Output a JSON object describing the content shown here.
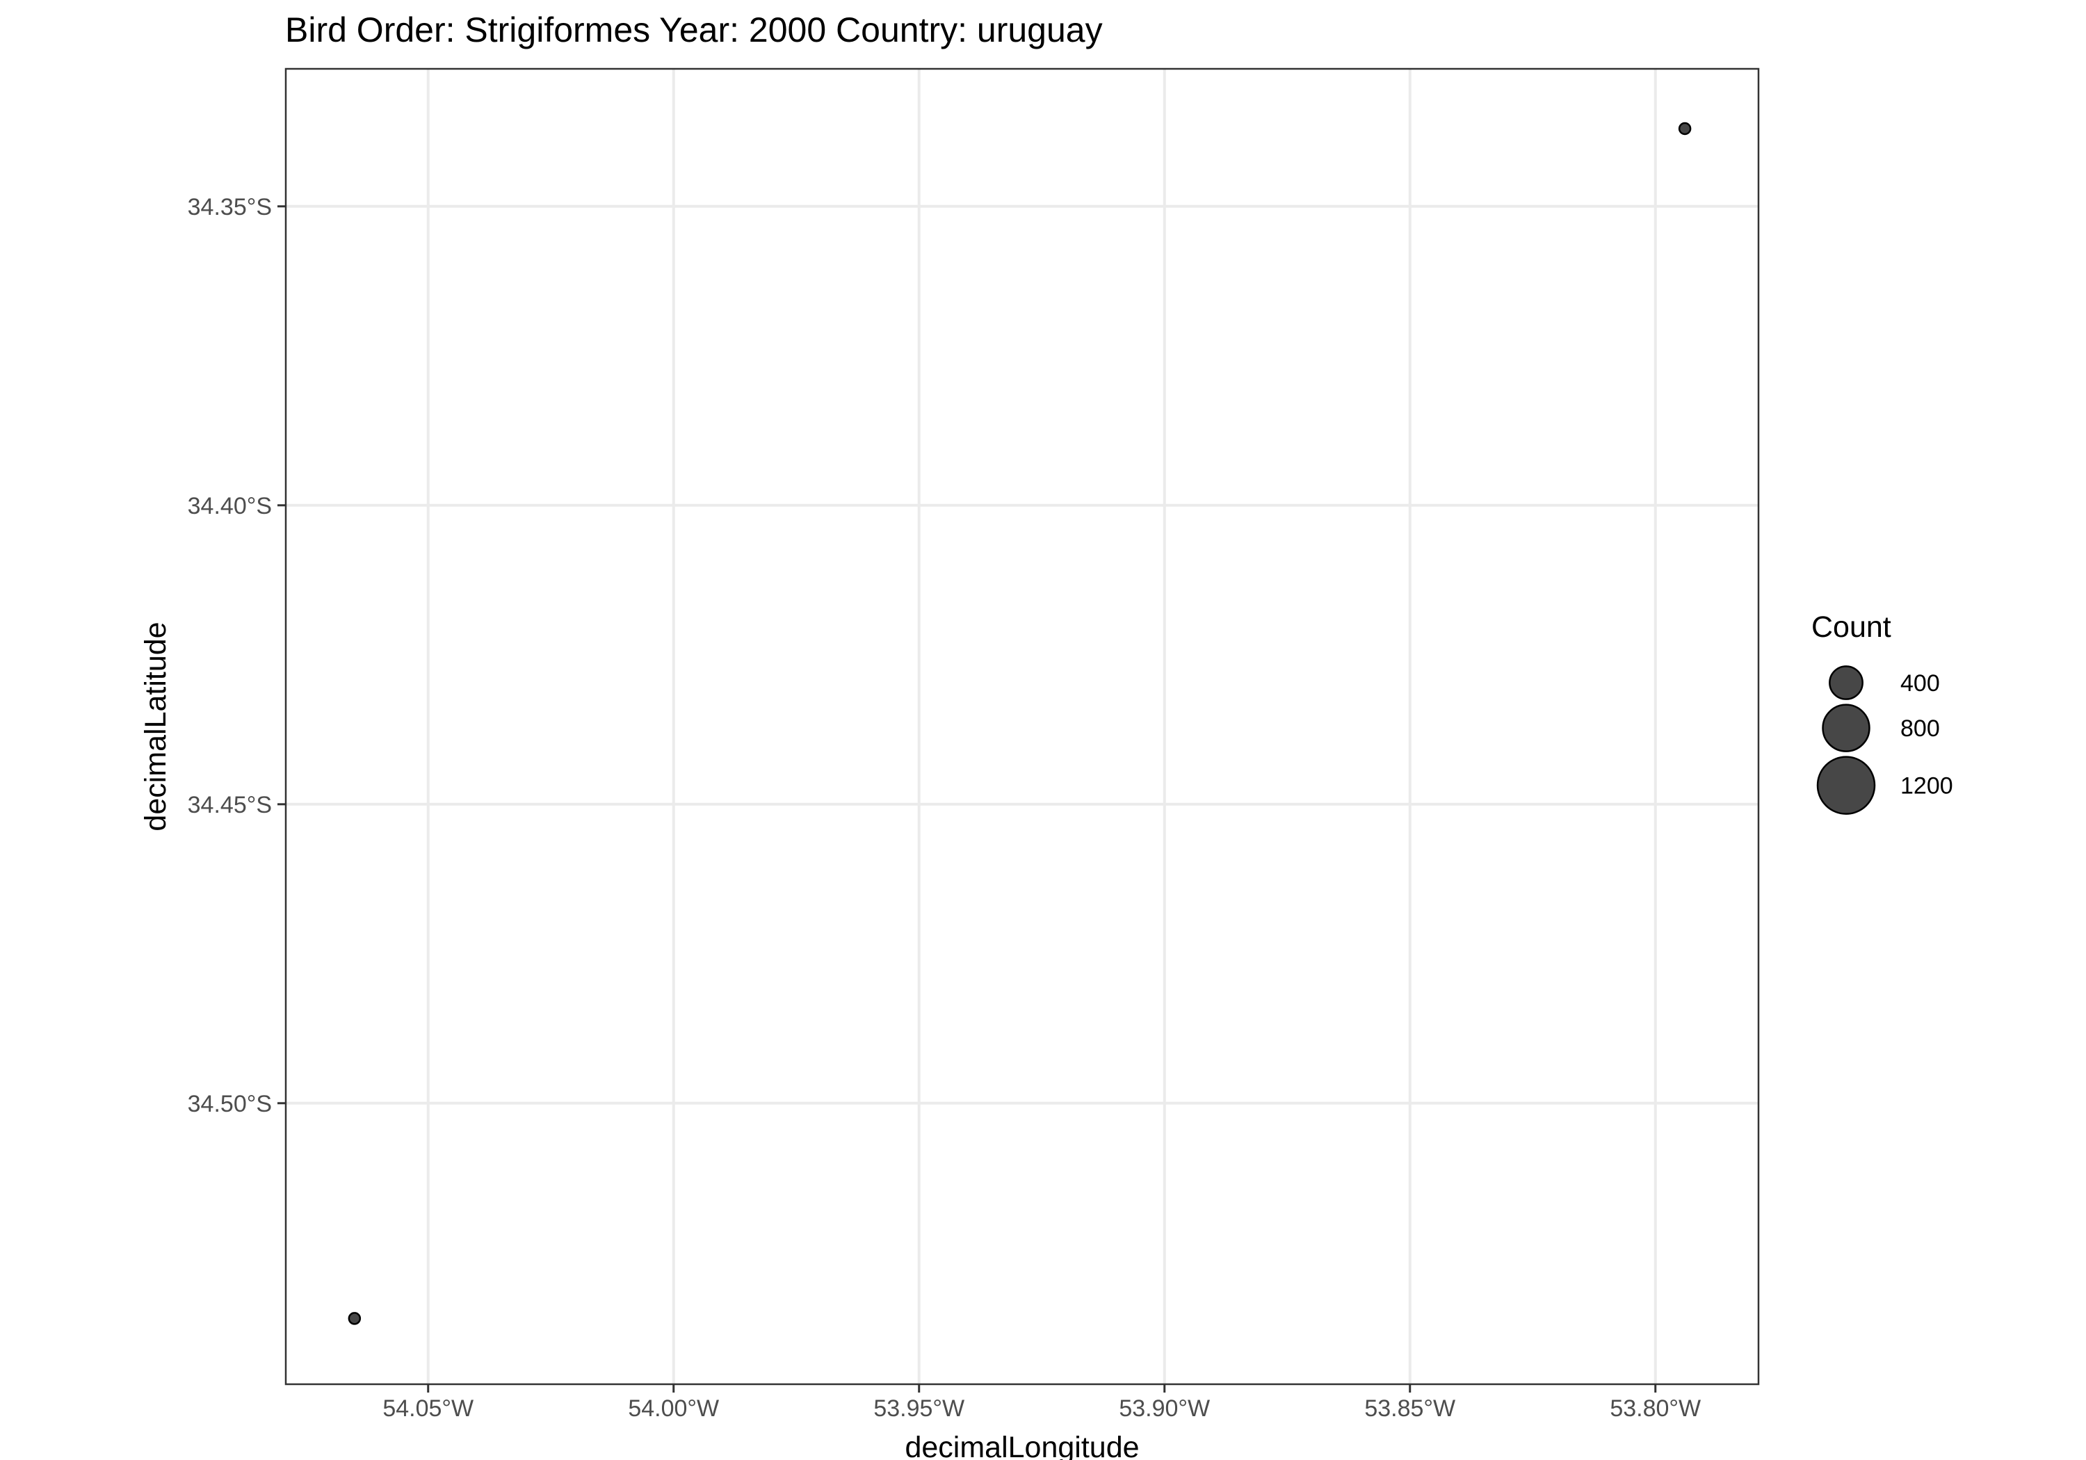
{
  "chart_data": {
    "type": "scatter",
    "title": "Bird Order: Strigiformes Year: 2000 Country: uruguay",
    "xlabel": "decimalLongitude",
    "ylabel": "decimalLatitude",
    "xlim": [
      -54.079,
      -53.779
    ],
    "ylim": [
      -34.547,
      -34.327
    ],
    "x_ticks": [
      {
        "value": -54.05,
        "label": "54.05°W"
      },
      {
        "value": -54.0,
        "label": "54.00°W"
      },
      {
        "value": -53.95,
        "label": "53.95°W"
      },
      {
        "value": -53.9,
        "label": "53.90°W"
      },
      {
        "value": -53.85,
        "label": "53.85°W"
      },
      {
        "value": -53.8,
        "label": "53.80°W"
      }
    ],
    "y_ticks": [
      {
        "value": -34.35,
        "label": "34.35°S"
      },
      {
        "value": -34.4,
        "label": "34.40°S"
      },
      {
        "value": -34.45,
        "label": "34.45°S"
      },
      {
        "value": -34.5,
        "label": "34.50°S"
      }
    ],
    "points": [
      {
        "x": -54.065,
        "y": -34.536,
        "count": 20
      },
      {
        "x": -53.794,
        "y": -34.337,
        "count": 30
      }
    ],
    "grid": true,
    "legend": {
      "title": "Count",
      "position": "right",
      "entries": [
        {
          "value": 400,
          "label": "400"
        },
        {
          "value": 800,
          "label": "800"
        },
        {
          "value": 1200,
          "label": "1200"
        }
      ]
    },
    "point_color": "#000000"
  }
}
